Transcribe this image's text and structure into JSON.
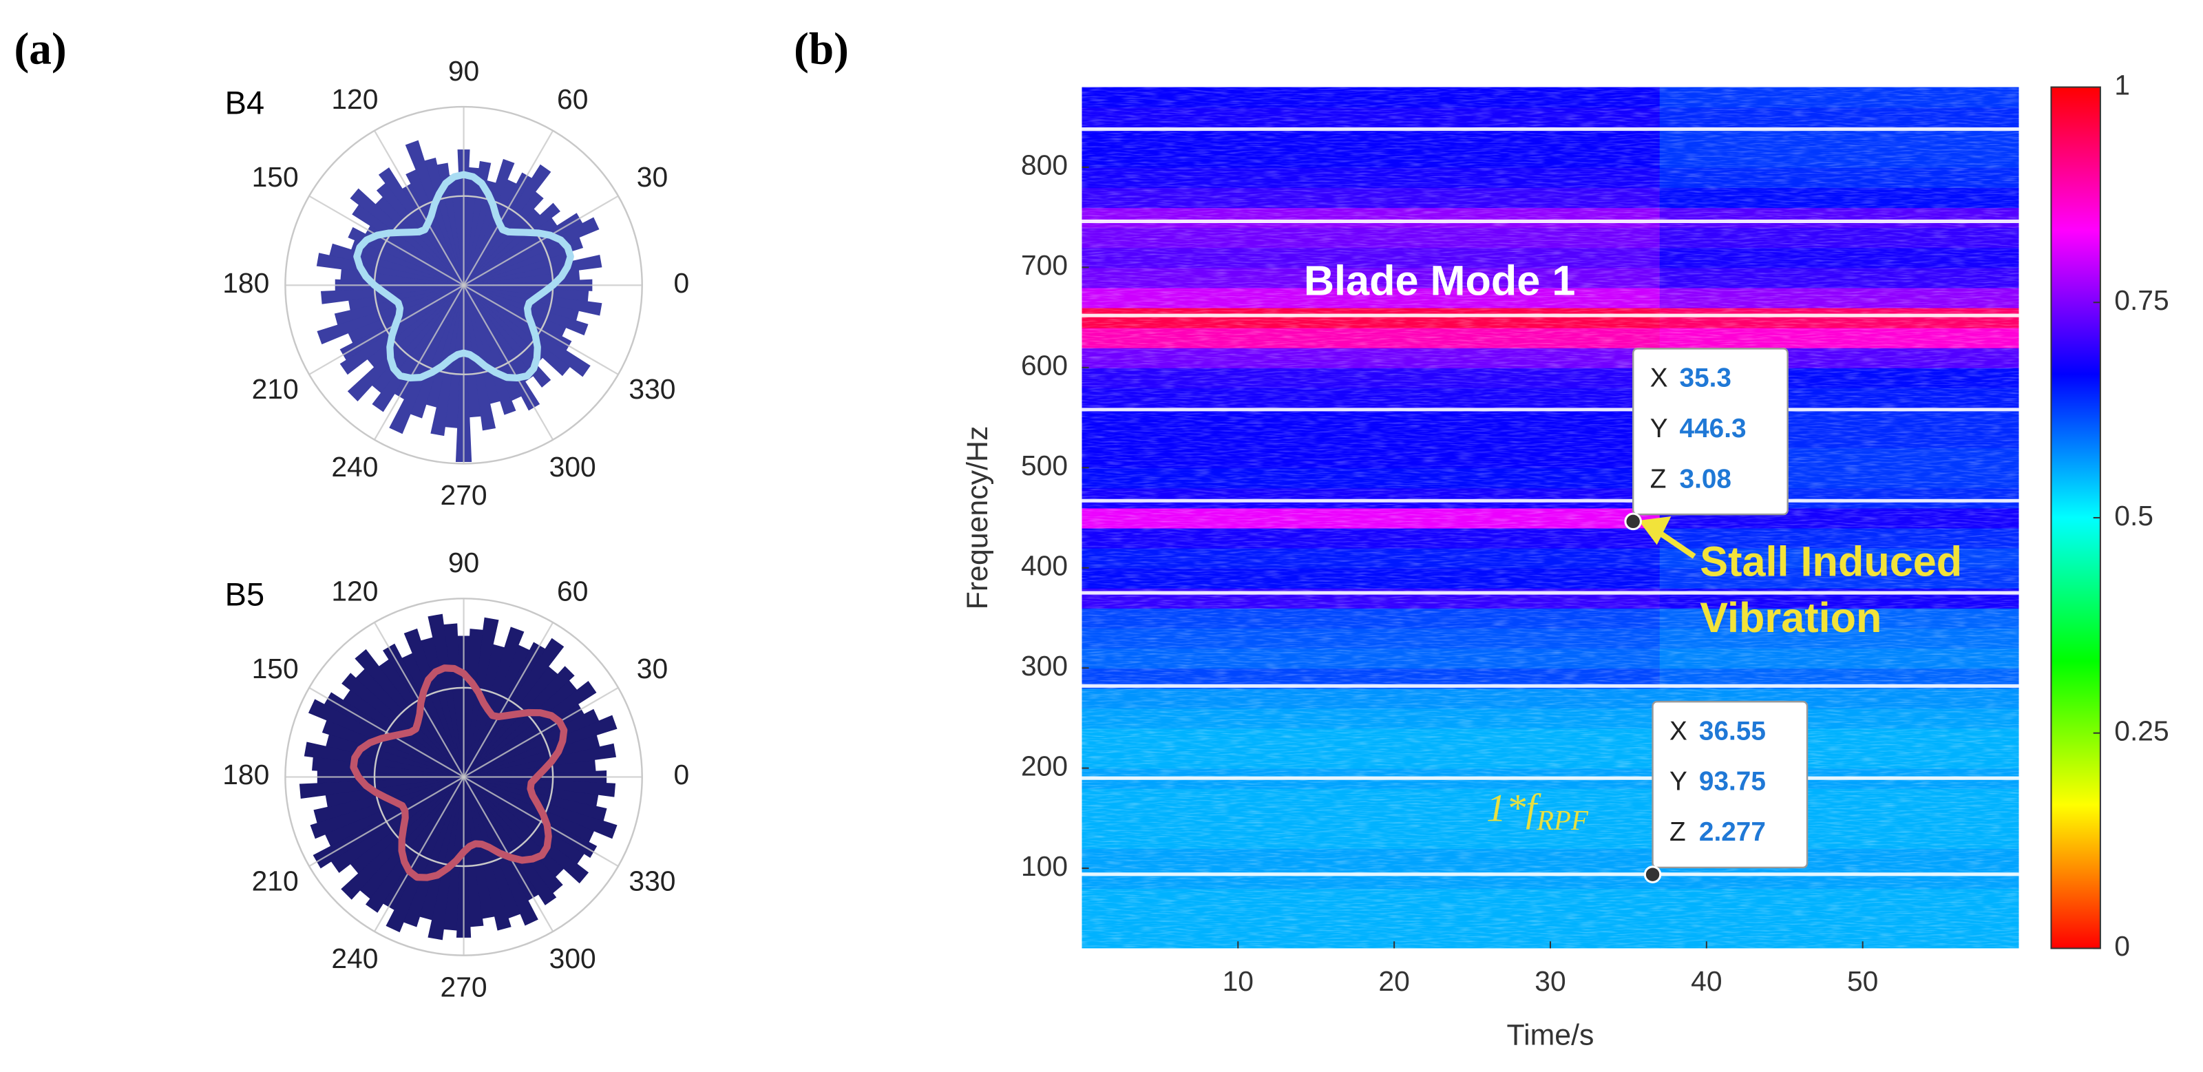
{
  "panel_labels": [
    "(a)",
    "(b)"
  ],
  "chart_data": [
    {
      "type": "polar",
      "title": "B4",
      "theta": [
        0,
        5,
        10,
        15,
        20,
        25,
        30,
        35,
        40,
        45,
        50,
        55,
        60,
        65,
        70,
        75,
        80,
        85,
        90,
        95,
        100,
        105,
        110,
        115,
        120,
        125,
        130,
        135,
        140,
        145,
        150,
        155,
        160,
        165,
        170,
        175,
        180,
        185,
        190,
        195,
        200,
        205,
        210,
        215,
        220,
        225,
        230,
        235,
        240,
        245,
        250,
        255,
        260,
        265,
        270,
        275,
        280,
        285,
        290,
        295,
        300,
        305,
        310,
        315,
        320,
        325,
        330,
        335,
        340,
        345,
        350,
        355
      ],
      "rlim": [
        0,
        1
      ],
      "rticks": [
        0.5,
        1
      ],
      "thetaticks": [
        0,
        30,
        60,
        90,
        120,
        150,
        180,
        210,
        240,
        270,
        300,
        330
      ],
      "grid": true,
      "series": [
        {
          "style": "bar",
          "color": "#3b3ea3",
          "values": [
            0.72,
            0.65,
            0.78,
            0.6,
            0.7,
            0.82,
            0.75,
            0.62,
            0.68,
            0.58,
            0.66,
            0.8,
            0.71,
            0.64,
            0.74,
            0.6,
            0.7,
            0.66,
            0.76,
            0.62,
            0.69,
            0.73,
            0.85,
            0.7,
            0.64,
            0.78,
            0.72,
            0.67,
            0.8,
            0.74,
            0.62,
            0.7,
            0.66,
            0.77,
            0.83,
            0.69,
            0.72,
            0.8,
            0.65,
            0.74,
            0.86,
            0.7,
            0.78,
            0.82,
            0.68,
            0.88,
            0.76,
            0.84,
            0.72,
            0.9,
            0.78,
            0.7,
            0.85,
            0.8,
            0.99,
            0.74,
            0.82,
            0.68,
            0.76,
            0.7,
            0.79,
            0.64,
            0.72,
            0.6,
            0.75,
            0.84,
            0.68,
            0.62,
            0.73,
            0.66,
            0.78,
            0.7
          ]
        },
        {
          "style": "line",
          "color": "#a9dcf3",
          "values": [
            0.5,
            0.55,
            0.59,
            0.62,
            0.62,
            0.6,
            0.56,
            0.51,
            0.46,
            0.42,
            0.39,
            0.38,
            0.4,
            0.43,
            0.48,
            0.53,
            0.58,
            0.61,
            0.62,
            0.61,
            0.58,
            0.53,
            0.48,
            0.43,
            0.4,
            0.38,
            0.39,
            0.42,
            0.46,
            0.51,
            0.56,
            0.6,
            0.62,
            0.62,
            0.59,
            0.55,
            0.5,
            0.45,
            0.41,
            0.38,
            0.38,
            0.4,
            0.44,
            0.49,
            0.54,
            0.58,
            0.61,
            0.62,
            0.6,
            0.57,
            0.52,
            0.47,
            0.42,
            0.39,
            0.38,
            0.39,
            0.42,
            0.47,
            0.52,
            0.57,
            0.6,
            0.62,
            0.61,
            0.58,
            0.54,
            0.49,
            0.44,
            0.4,
            0.38,
            0.38,
            0.41,
            0.45
          ]
        }
      ]
    },
    {
      "type": "polar",
      "title": "B5",
      "theta": [
        0,
        5,
        10,
        15,
        20,
        25,
        30,
        35,
        40,
        45,
        50,
        55,
        60,
        65,
        70,
        75,
        80,
        85,
        90,
        95,
        100,
        105,
        110,
        115,
        120,
        125,
        130,
        135,
        140,
        145,
        150,
        155,
        160,
        165,
        170,
        175,
        180,
        185,
        190,
        195,
        200,
        205,
        210,
        215,
        220,
        225,
        230,
        235,
        240,
        245,
        250,
        255,
        260,
        265,
        270,
        275,
        280,
        285,
        290,
        295,
        300,
        305,
        310,
        315,
        320,
        325,
        330,
        335,
        340,
        345,
        350,
        355
      ],
      "rlim": [
        0,
        1
      ],
      "rticks": [
        0.5,
        1
      ],
      "thetaticks": [
        0,
        30,
        60,
        90,
        120,
        150,
        180,
        210,
        240,
        270,
        300,
        330
      ],
      "grid": true,
      "series": [
        {
          "style": "bar",
          "color": "#1c1a6e",
          "values": [
            0.8,
            0.74,
            0.86,
            0.78,
            0.9,
            0.82,
            0.76,
            0.88,
            0.8,
            0.84,
            0.78,
            0.92,
            0.85,
            0.8,
            0.88,
            0.76,
            0.9,
            0.83,
            0.79,
            0.86,
            0.92,
            0.8,
            0.87,
            0.75,
            0.84,
            0.78,
            0.9,
            0.82,
            0.86,
            0.8,
            0.88,
            0.94,
            0.83,
            0.79,
            0.9,
            0.85,
            0.82,
            0.92,
            0.78,
            0.86,
            0.9,
            0.84,
            0.95,
            0.88,
            0.8,
            0.93,
            0.86,
            0.9,
            0.84,
            0.94,
            0.88,
            0.82,
            0.92,
            0.86,
            0.9,
            0.84,
            0.8,
            0.88,
            0.83,
            0.9,
            0.78,
            0.85,
            0.82,
            0.76,
            0.88,
            0.8,
            0.84,
            0.79,
            0.9,
            0.82,
            0.76,
            0.85
          ]
        },
        {
          "style": "line",
          "color": "#c0546a",
          "values": [
            0.41,
            0.45,
            0.5,
            0.55,
            0.59,
            0.62,
            0.62,
            0.6,
            0.56,
            0.51,
            0.46,
            0.42,
            0.39,
            0.38,
            0.4,
            0.43,
            0.48,
            0.53,
            0.58,
            0.61,
            0.62,
            0.61,
            0.58,
            0.53,
            0.48,
            0.43,
            0.4,
            0.38,
            0.39,
            0.42,
            0.46,
            0.51,
            0.56,
            0.6,
            0.62,
            0.62,
            0.59,
            0.55,
            0.5,
            0.45,
            0.41,
            0.38,
            0.38,
            0.4,
            0.44,
            0.49,
            0.54,
            0.58,
            0.61,
            0.62,
            0.6,
            0.57,
            0.52,
            0.47,
            0.42,
            0.39,
            0.38,
            0.39,
            0.42,
            0.47,
            0.52,
            0.57,
            0.6,
            0.62,
            0.61,
            0.58,
            0.54,
            0.49,
            0.44,
            0.4,
            0.38,
            0.38
          ]
        }
      ]
    },
    {
      "type": "heatmap",
      "xlabel": "Time/s",
      "ylabel": "Frequency/Hz",
      "xlim": [
        0,
        60
      ],
      "ylim": [
        20,
        880
      ],
      "xticks": [
        10,
        20,
        30,
        40,
        50
      ],
      "yticks": [
        100,
        200,
        300,
        400,
        500,
        600,
        700,
        800
      ],
      "xbins": [
        0,
        37,
        60
      ],
      "ybins": [
        20,
        40,
        60,
        80,
        100,
        120,
        140,
        160,
        180,
        200,
        220,
        240,
        260,
        280,
        300,
        320,
        340,
        360,
        380,
        400,
        420,
        440,
        460,
        480,
        500,
        520,
        540,
        560,
        580,
        600,
        620,
        640,
        660,
        680,
        700,
        720,
        740,
        760,
        780,
        800,
        820,
        840,
        860,
        880
      ],
      "z": [
        [
          0.55,
          0.55
        ],
        [
          0.55,
          0.55
        ],
        [
          0.55,
          0.55
        ],
        [
          0.56,
          0.56
        ],
        [
          0.56,
          0.56
        ],
        [
          0.55,
          0.55
        ],
        [
          0.55,
          0.55
        ],
        [
          0.55,
          0.55
        ],
        [
          0.56,
          0.56
        ],
        [
          0.55,
          0.55
        ],
        [
          0.55,
          0.55
        ],
        [
          0.56,
          0.56
        ],
        [
          0.57,
          0.57
        ],
        [
          0.62,
          0.6
        ],
        [
          0.6,
          0.58
        ],
        [
          0.61,
          0.59
        ],
        [
          0.62,
          0.6
        ],
        [
          0.7,
          0.68
        ],
        [
          0.66,
          0.63
        ],
        [
          0.65,
          0.62
        ],
        [
          0.68,
          0.64
        ],
        [
          0.82,
          0.68
        ],
        [
          0.68,
          0.64
        ],
        [
          0.66,
          0.63
        ],
        [
          0.67,
          0.63
        ],
        [
          0.67,
          0.64
        ],
        [
          0.67,
          0.64
        ],
        [
          0.68,
          0.65
        ],
        [
          0.69,
          0.66
        ],
        [
          0.74,
          0.72
        ],
        [
          0.88,
          0.86
        ],
        [
          0.95,
          0.93
        ],
        [
          0.8,
          0.76
        ],
        [
          0.74,
          0.7
        ],
        [
          0.72,
          0.68
        ],
        [
          0.74,
          0.7
        ],
        [
          0.76,
          0.72
        ],
        [
          0.7,
          0.66
        ],
        [
          0.68,
          0.64
        ],
        [
          0.67,
          0.63
        ],
        [
          0.67,
          0.63
        ],
        [
          0.68,
          0.64
        ],
        [
          0.67,
          0.63
        ]
      ],
      "clim": [
        0,
        1
      ],
      "cticks": [
        0,
        0.25,
        0.5,
        0.75,
        1
      ],
      "colormap": [
        "#ff0000",
        "#ffff00",
        "#00ff00",
        "#00ffff",
        "#0000ff",
        "#ff00ff",
        "#ff0000"
      ],
      "lines": {
        "color": "#ffffff",
        "values": [
          94,
          190,
          282,
          375,
          467,
          558,
          652,
          746,
          838
        ]
      },
      "annotations": {
        "blade": "Blade Mode 1",
        "stall": [
          "Stall Induced",
          "Vibration"
        ],
        "rpf": {
          "text": "1*f",
          "sub": "RPF"
        }
      },
      "datatip_labels": [
        "X",
        "Y",
        "Z"
      ],
      "datatips": [
        {
          "x": 35.3,
          "y": 446.3,
          "z": 3.08
        },
        {
          "x": 36.55,
          "y": 93.75,
          "z": 2.277
        }
      ]
    }
  ]
}
